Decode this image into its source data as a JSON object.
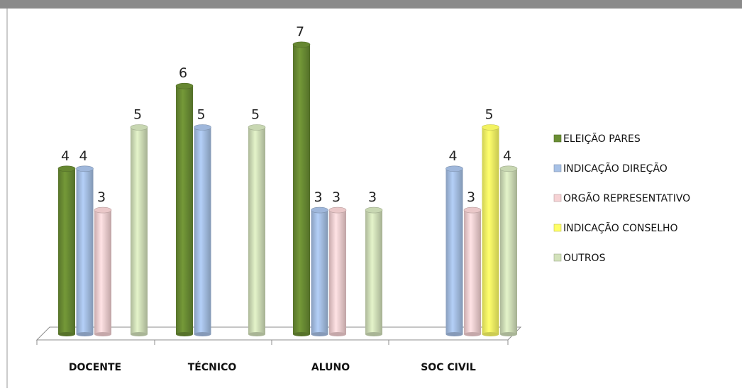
{
  "chart_data": {
    "type": "bar",
    "categories": [
      "DOCENTE",
      "TÉCNICO",
      "ALUNO",
      "SOC CIVIL"
    ],
    "series": [
      {
        "name": "ELEIÇÃO PARES",
        "color": "#6b8e34",
        "values": [
          4,
          6,
          7,
          null
        ]
      },
      {
        "name": "INDICAÇÃO DIREÇÃO",
        "color": "#a7c1e6",
        "values": [
          4,
          5,
          3,
          4
        ]
      },
      {
        "name": "ORGÃO REPRESENTATIVO",
        "color": "#f6d2d4",
        "values": [
          3,
          null,
          3,
          3
        ]
      },
      {
        "name": "INDICAÇÃO CONSELHO",
        "color": "#ffff66",
        "values": [
          null,
          null,
          null,
          5
        ]
      },
      {
        "name": "OUTROS",
        "color": "#d3e2bb",
        "values": [
          5,
          5,
          3,
          4
        ]
      }
    ],
    "title": "",
    "xlabel": "",
    "ylabel": "",
    "ylim": [
      0,
      7
    ],
    "grid": false,
    "legend": "right",
    "three_d": true
  }
}
